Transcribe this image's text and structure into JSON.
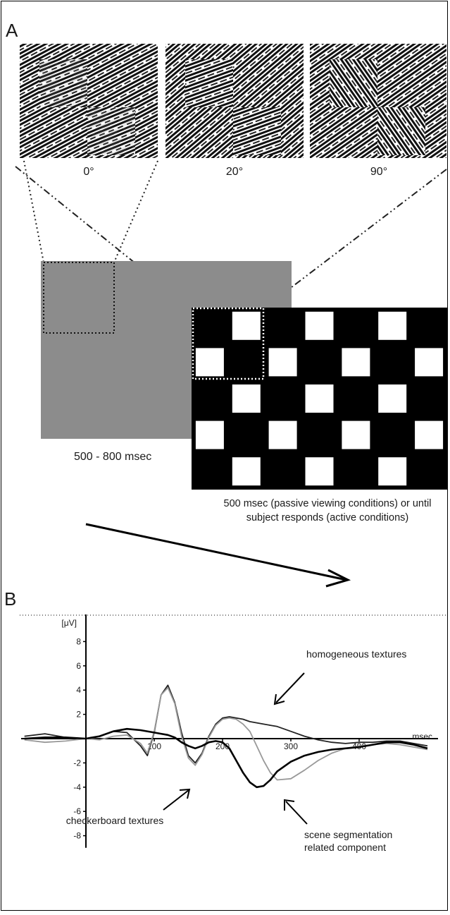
{
  "panel_a": {
    "label": "A",
    "textures": [
      {
        "angle_label": "0°",
        "orientation_deg": 0
      },
      {
        "angle_label": "20°",
        "orientation_deg": 20
      },
      {
        "angle_label": "90°",
        "orientation_deg": 90
      }
    ],
    "homogeneous_duration": "500 - 800 msec",
    "checkerboard_duration_line1": "500 msec (passive viewing conditions) or until",
    "checkerboard_duration_line2": "subject responds (active conditions)",
    "colors": {
      "gray_screen": "#8c8c8c",
      "checker_dark": "#000000",
      "checker_light": "#ffffff"
    }
  },
  "panel_b": {
    "label": "B",
    "y_unit": "[μV]",
    "x_unit": "msec",
    "annotations": {
      "homogeneous": "homogeneous textures",
      "checkerboard": "checkerboard textures",
      "segmentation_line1": "scene segmentation",
      "segmentation_line2": "related component"
    }
  },
  "chart_data": {
    "type": "line",
    "ylabel": "[μV]",
    "xlabel": "msec",
    "ylim": [
      -9,
      10
    ],
    "xlim": [
      -90,
      500
    ],
    "y_ticks": [
      8,
      6,
      4,
      2,
      -2,
      -4,
      -6,
      -8
    ],
    "x_ticks": [
      100,
      200,
      300,
      400
    ],
    "series": [
      {
        "color": "#222222",
        "x": [
          -90,
          -60,
          -30,
          0,
          20,
          40,
          60,
          80,
          90,
          100,
          110,
          120,
          130,
          140,
          150,
          160,
          170,
          180,
          190,
          200,
          210,
          220,
          230,
          240,
          250,
          260,
          270,
          280,
          300,
          320,
          340,
          360,
          380,
          400,
          420,
          440,
          460,
          480,
          500
        ],
        "y": [
          0.2,
          0.4,
          0.1,
          0,
          0.2,
          0.6,
          0.5,
          -0.6,
          -1.4,
          0.5,
          3.6,
          4.4,
          3.0,
          0.5,
          -1.4,
          -2.0,
          -1.2,
          0.2,
          1.2,
          1.7,
          1.8,
          1.7,
          1.6,
          1.4,
          1.3,
          1.2,
          1.1,
          1.0,
          0.6,
          0.2,
          -0.1,
          -0.3,
          -0.4,
          -0.3,
          -0.3,
          -0.2,
          -0.2,
          -0.4,
          -0.6
        ]
      },
      {
        "color": "#999999",
        "x": [
          -90,
          -60,
          -30,
          0,
          20,
          40,
          60,
          80,
          90,
          100,
          110,
          120,
          130,
          140,
          150,
          160,
          170,
          180,
          190,
          200,
          210,
          220,
          230,
          240,
          250,
          260,
          270,
          280,
          300,
          320,
          340,
          360,
          380,
          400,
          420,
          440,
          460,
          480,
          500
        ],
        "y": [
          -0.1,
          -0.3,
          -0.2,
          0,
          -0.1,
          0.2,
          0.3,
          -0.4,
          -1.2,
          0.6,
          3.6,
          4.2,
          2.9,
          0.2,
          -1.6,
          -2.2,
          -1.3,
          0.1,
          1.1,
          1.6,
          1.7,
          1.6,
          1.2,
          0.6,
          -0.6,
          -1.8,
          -2.8,
          -3.4,
          -3.3,
          -2.6,
          -1.8,
          -1.2,
          -0.8,
          -0.6,
          -0.5,
          -0.4,
          -0.5,
          -0.7,
          -0.9
        ]
      },
      {
        "color": "#000000",
        "x": [
          -90,
          -60,
          -30,
          0,
          20,
          40,
          60,
          80,
          100,
          110,
          120,
          130,
          140,
          150,
          160,
          170,
          180,
          190,
          200,
          210,
          220,
          230,
          240,
          250,
          260,
          270,
          280,
          300,
          320,
          340,
          360,
          380,
          400,
          420,
          440,
          460,
          480,
          500
        ],
        "y": [
          0,
          0.1,
          0.1,
          0,
          0.2,
          0.6,
          0.8,
          0.7,
          0.5,
          0.4,
          0.3,
          0.1,
          -0.3,
          -0.6,
          -0.8,
          -0.6,
          -0.3,
          -0.2,
          -0.3,
          -0.8,
          -1.8,
          -2.8,
          -3.6,
          -4.0,
          -3.9,
          -3.4,
          -2.7,
          -1.9,
          -1.4,
          -1.1,
          -0.9,
          -0.8,
          -0.7,
          -0.5,
          -0.3,
          -0.3,
          -0.5,
          -0.8
        ]
      }
    ]
  }
}
